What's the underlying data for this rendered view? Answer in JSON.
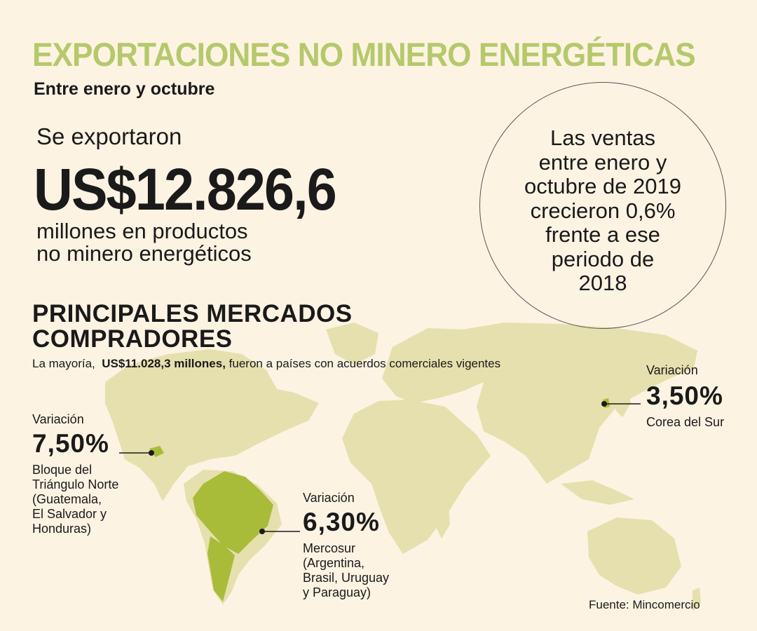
{
  "header": {
    "title": "EXPORTACIONES NO MINERO ENERGÉTICAS",
    "subtitle": "Entre enero y octubre"
  },
  "colors": {
    "background": "#fdf3e3",
    "title_green": "#b5c96b",
    "map_land": "#e5e0ad",
    "map_highlight": "#a8bc3a",
    "text": "#1a1a1a"
  },
  "exports": {
    "intro": "Se exportaron",
    "amount": "US$12.826,6",
    "description_lines": [
      "millones en productos",
      "no minero energéticos"
    ]
  },
  "growth": {
    "lines": [
      "Las ventas",
      "entre enero y",
      "octubre de 2019",
      "crecieron 0,6%",
      "frente a ese",
      "periodo de",
      "2018"
    ]
  },
  "markets": {
    "title_lines": [
      "PRINCIPALES MERCADOS",
      "COMPRADORES"
    ],
    "note_prefix": "La mayoría,",
    "note_bold": "US$11.028,3 millones,",
    "note_suffix": "fueron a países con acuerdos comerciales vigentes",
    "items": [
      {
        "label": "Variación",
        "value": "7,50%",
        "name_lines": [
          "Bloque del",
          "Triángulo Norte",
          "(Guatemala,",
          "El Salvador y",
          "Honduras)"
        ]
      },
      {
        "label": "Variación",
        "value": "6,30%",
        "name_lines": [
          "Mercosur",
          "(Argentina,",
          "Brasil, Uruguay",
          "y Paraguay)"
        ]
      },
      {
        "label": "Variación",
        "value": "3,50%",
        "name_lines": [
          "Corea del Sur"
        ]
      }
    ]
  },
  "source": "Fuente: Mincomercio"
}
